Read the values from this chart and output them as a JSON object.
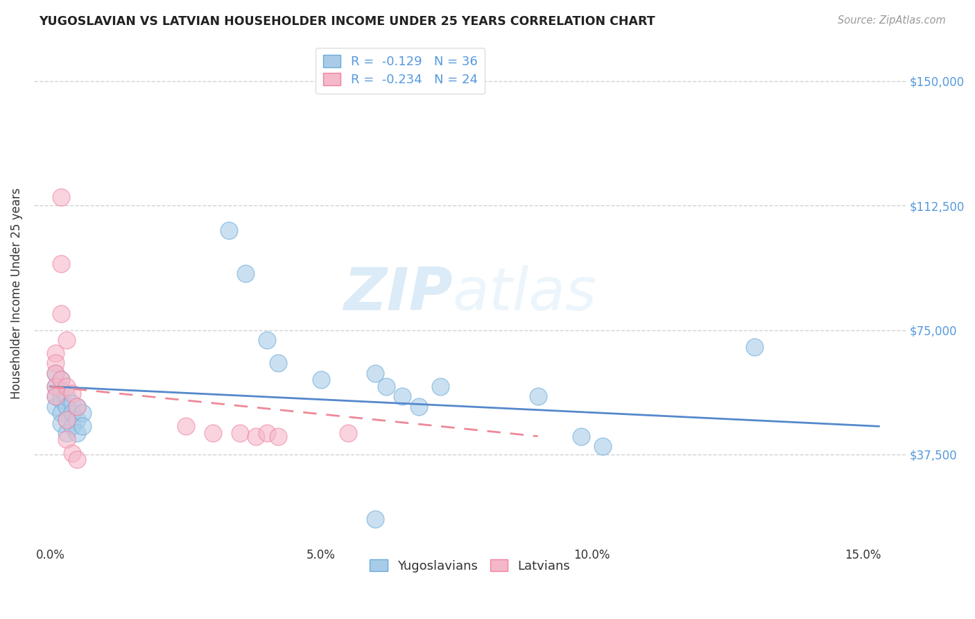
{
  "title": "YUGOSLAVIAN VS LATVIAN HOUSEHOLDER INCOME UNDER 25 YEARS CORRELATION CHART",
  "source": "Source: ZipAtlas.com",
  "ylabel": "Householder Income Under 25 years",
  "xlabel_ticks": [
    "0.0%",
    "5.0%",
    "10.0%",
    "15.0%"
  ],
  "xlabel_vals": [
    0.0,
    0.05,
    0.1,
    0.15
  ],
  "ylabel_ticks": [
    "$37,500",
    "$75,000",
    "$112,500",
    "$150,000"
  ],
  "ylabel_vals": [
    37500,
    75000,
    112500,
    150000
  ],
  "xlim": [
    -0.003,
    0.158
  ],
  "ylim": [
    10000,
    162000
  ],
  "yug_R": -0.129,
  "yug_N": 36,
  "lat_R": -0.234,
  "lat_N": 24,
  "yug_color": "#a8cce8",
  "lat_color": "#f5b8c8",
  "yug_edge_color": "#6aaad8",
  "lat_edge_color": "#f080a0",
  "yug_line_color": "#5588cc",
  "lat_line_color": "#ee8898",
  "watermark": "ZIPatlas",
  "legend_label_yug": "Yugoslavians",
  "legend_label_lat": "Latvians",
  "yug_x": [
    0.001,
    0.001,
    0.001,
    0.001,
    0.002,
    0.002,
    0.002,
    0.002,
    0.002,
    0.003,
    0.003,
    0.003,
    0.003,
    0.004,
    0.004,
    0.004,
    0.005,
    0.005,
    0.005,
    0.006,
    0.006,
    0.033,
    0.036,
    0.04,
    0.042,
    0.05,
    0.06,
    0.062,
    0.065,
    0.068,
    0.072,
    0.09,
    0.098,
    0.102,
    0.13,
    0.06
  ],
  "yug_y": [
    62000,
    58000,
    55000,
    52000,
    60000,
    57000,
    54000,
    50000,
    47000,
    55000,
    52000,
    48000,
    44000,
    53000,
    50000,
    46000,
    52000,
    48000,
    44000,
    50000,
    46000,
    105000,
    92000,
    72000,
    65000,
    60000,
    62000,
    58000,
    55000,
    52000,
    58000,
    55000,
    43000,
    40000,
    70000,
    18000
  ],
  "lat_x": [
    0.001,
    0.001,
    0.001,
    0.001,
    0.001,
    0.002,
    0.002,
    0.002,
    0.002,
    0.003,
    0.003,
    0.003,
    0.003,
    0.004,
    0.004,
    0.005,
    0.005,
    0.025,
    0.03,
    0.035,
    0.038,
    0.04,
    0.042,
    0.055
  ],
  "lat_y": [
    68000,
    65000,
    62000,
    58000,
    55000,
    115000,
    95000,
    80000,
    60000,
    72000,
    58000,
    48000,
    42000,
    56000,
    38000,
    52000,
    36000,
    46000,
    44000,
    44000,
    43000,
    44000,
    43000,
    44000
  ],
  "yug_line_x": [
    0.0,
    0.153
  ],
  "yug_line_y": [
    58000,
    46000
  ],
  "lat_line_x": [
    0.0,
    0.09
  ],
  "lat_line_y": [
    58000,
    43000
  ],
  "grid_color": "#cccccc",
  "grid_linestyle": "--",
  "right_tick_color": "#5599dd",
  "title_color": "#222222",
  "source_color": "#999999",
  "label_color": "#333333"
}
